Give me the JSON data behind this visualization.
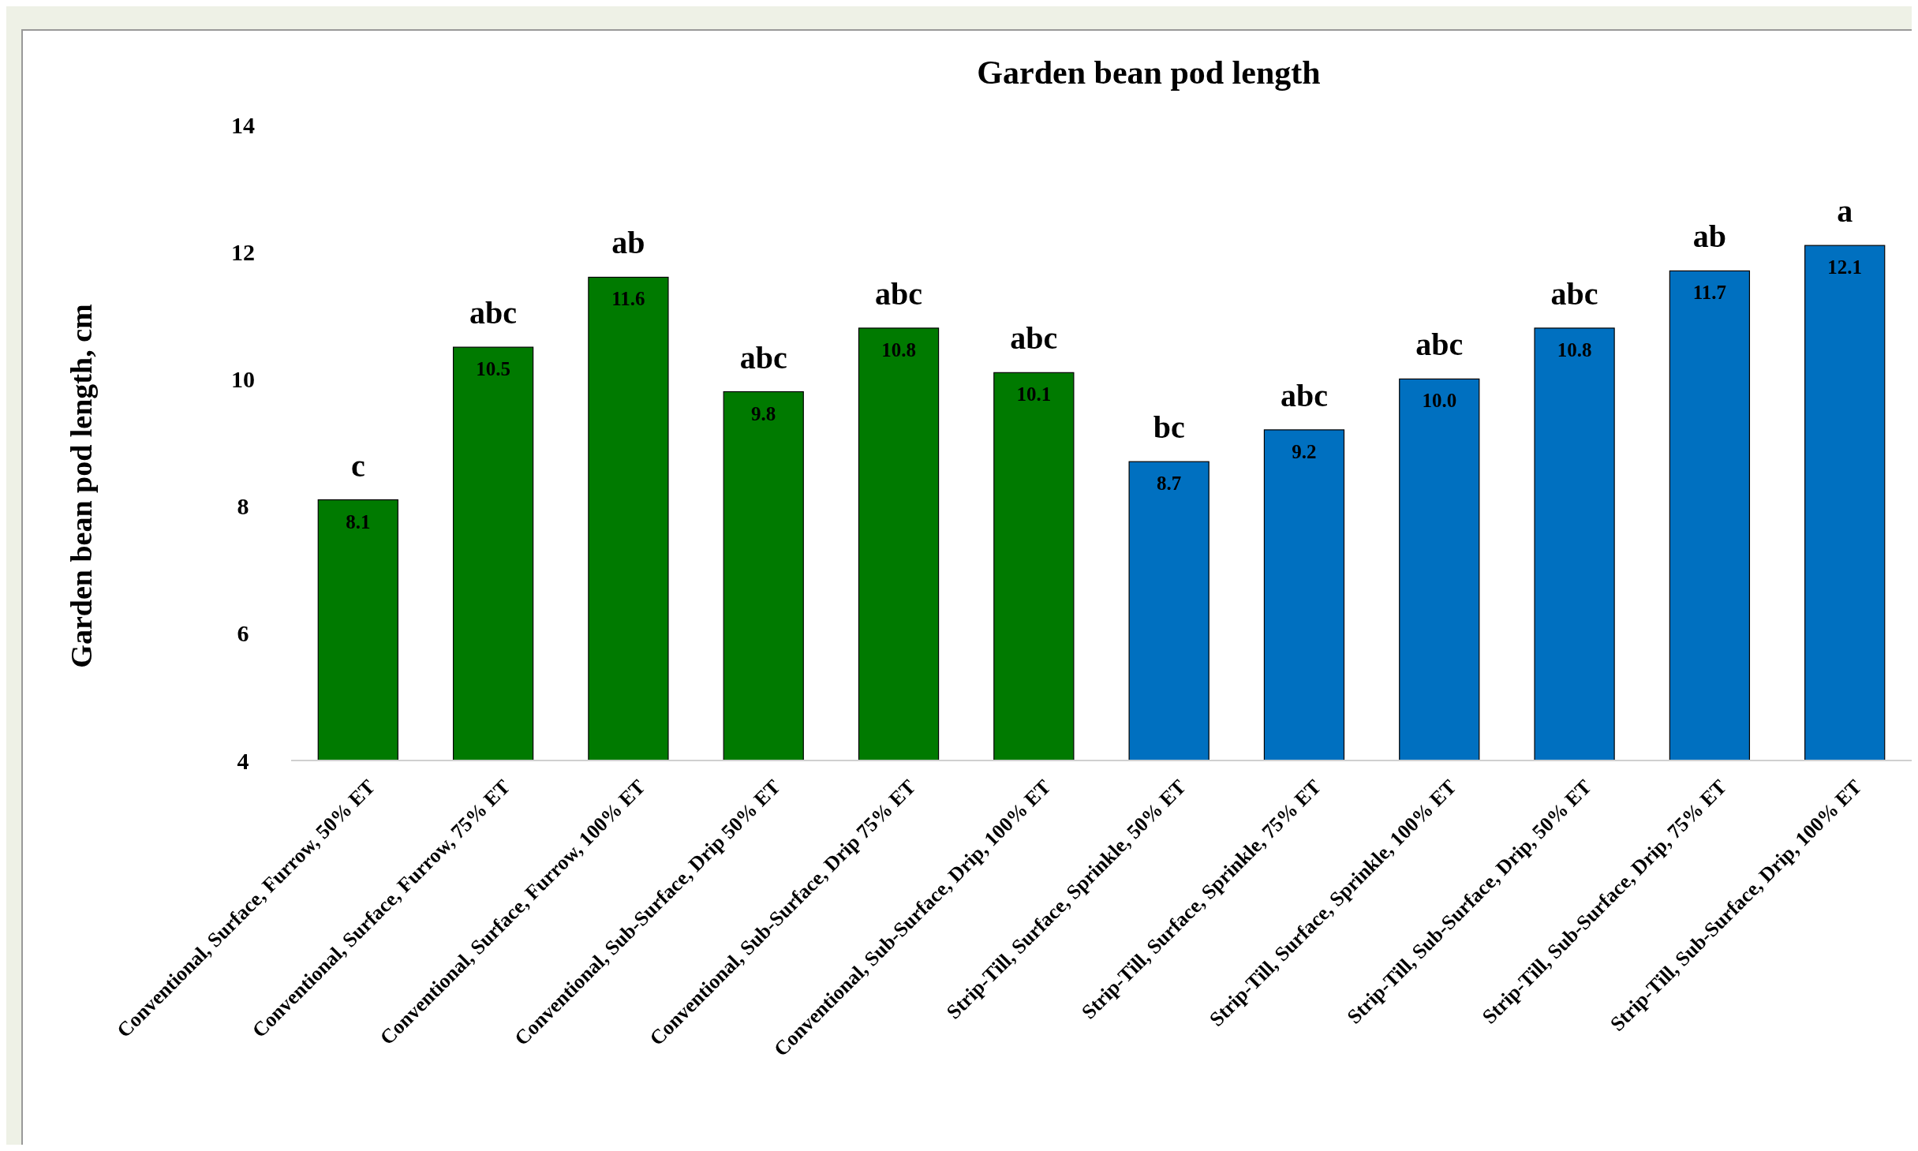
{
  "chart_data": {
    "type": "bar",
    "title": "Garden bean pod length",
    "ylabel": "Garden bean pod length, cm",
    "categories": [
      "Conventional, Surface, Furrow, 50% ET",
      "Conventional, Surface, Furrow, 75% ET",
      "Conventional, Surface, Furrow, 100% ET",
      "Conventional, Sub-Surface, Drip 50% ET",
      "Conventional, Sub-Surface, Drip 75% ET",
      "Conventional, Sub-Surface, Drip, 100% ET",
      "Strip-Till, Surface, Sprinkle, 50% ET",
      "Strip-Till, Surface, Sprinkle, 75% ET",
      "Strip-Till, Surface, Sprinkle, 100% ET",
      "Strip-Till, Sub-Surface, Drip, 50% ET",
      "Strip-Till, Sub-Surface, Drip, 75% ET",
      "Strip-Till, Sub-Surface, Drip, 100% ET"
    ],
    "values": [
      8.1,
      10.5,
      11.6,
      9.8,
      10.8,
      10.1,
      8.7,
      9.2,
      10.0,
      10.8,
      11.7,
      12.1
    ],
    "value_labels": [
      "8.1",
      "10.5",
      "11.6",
      "9.8",
      "10.8",
      "10.1",
      "8.7",
      "9.2",
      "10.0",
      "10.8",
      "11.7",
      "12.1"
    ],
    "colors": [
      "#007a00",
      "#007a00",
      "#007a00",
      "#007a00",
      "#007a00",
      "#007a00",
      "#0070c0",
      "#0070c0",
      "#0070c0",
      "#0070c0",
      "#0070c0",
      "#0070c0"
    ],
    "ylim": [
      4,
      14
    ],
    "yticks": [
      4,
      6,
      8,
      10,
      12,
      14
    ],
    "grid": false,
    "annotations": [
      {
        "text": "c",
        "x": "Conventional, Surface, Furrow, 50% ET",
        "y": 8.1
      },
      {
        "text": "abc",
        "x": "Conventional, Surface, Furrow, 75% ET",
        "y": 10.5
      },
      {
        "text": "ab",
        "x": "Conventional, Surface, Furrow, 100% ET",
        "y": 11.6
      },
      {
        "text": "abc",
        "x": "Conventional, Sub-Surface, Drip 50% ET",
        "y": 9.8
      },
      {
        "text": "abc",
        "x": "Conventional, Sub-Surface, Drip 75% ET",
        "y": 10.8
      },
      {
        "text": "abc",
        "x": "Conventional, Sub-Surface, Drip, 100% ET",
        "y": 10.1
      },
      {
        "text": "bc",
        "x": "Strip-Till, Surface, Sprinkle, 50% ET",
        "y": 8.7
      },
      {
        "text": "abc",
        "x": "Strip-Till, Surface, Sprinkle, 75% ET",
        "y": 9.2
      },
      {
        "text": "abc",
        "x": "Strip-Till, Surface, Sprinkle, 100% ET",
        "y": 10.0
      },
      {
        "text": "abc",
        "x": "Strip-Till, Sub-Surface, Drip, 50% ET",
        "y": 10.8
      },
      {
        "text": "ab",
        "x": "Strip-Till, Sub-Surface, Drip, 75% ET",
        "y": 11.7
      },
      {
        "text": "a",
        "x": "Strip-Till, Sub-Surface, Drip, 100% ET",
        "y": 12.1
      }
    ]
  }
}
